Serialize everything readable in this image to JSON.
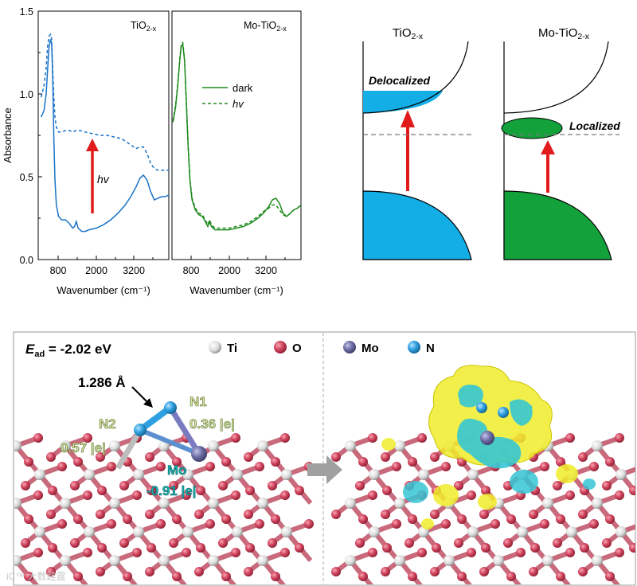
{
  "chart_data": [
    {
      "type": "line",
      "title": "TiO2-x",
      "xlabel": "Wavenumber (cm⁻¹)",
      "ylabel": "Absorbance",
      "xlim": [
        400,
        4000
      ],
      "ylim": [
        0,
        1.5
      ],
      "xticks": [
        "800",
        "2000",
        "3200"
      ],
      "yticks": [
        "0.0",
        "0.5",
        "1.0",
        "1.5"
      ],
      "annotation": "hv",
      "series": [
        {
          "style": "solid",
          "color": "#1a73c8",
          "x": [
            480,
            560,
            620,
            660,
            700,
            740,
            770,
            800,
            830,
            860,
            900,
            960,
            1050,
            1150,
            1250,
            1350,
            1400,
            1450,
            1500,
            1600,
            1700,
            1800,
            2000,
            2200,
            2400,
            2600,
            2800,
            2950,
            3100,
            3200,
            3300,
            3400,
            3500,
            3600,
            3700,
            3800,
            3900,
            4000
          ],
          "y": [
            0.86,
            0.9,
            1.0,
            1.15,
            1.29,
            1.33,
            1.3,
            1.1,
            0.74,
            0.48,
            0.33,
            0.26,
            0.24,
            0.24,
            0.22,
            0.19,
            0.2,
            0.23,
            0.19,
            0.17,
            0.17,
            0.18,
            0.19,
            0.21,
            0.24,
            0.28,
            0.33,
            0.38,
            0.44,
            0.49,
            0.51,
            0.48,
            0.41,
            0.36,
            0.37,
            0.38,
            0.38,
            0.39
          ]
        },
        {
          "style": "dashed",
          "color": "#1a73c8",
          "x": [
            480,
            560,
            620,
            660,
            700,
            740,
            770,
            800,
            830,
            860,
            900,
            960,
            1050,
            1150,
            1250,
            1350,
            1450,
            1550,
            1700,
            1900,
            2100,
            2300,
            2500,
            2700,
            2900,
            3100,
            3200,
            3300,
            3400,
            3500,
            3600,
            3700,
            3800,
            3900,
            4000
          ],
          "y": [
            0.98,
            1.05,
            1.16,
            1.29,
            1.35,
            1.36,
            1.33,
            1.15,
            0.98,
            0.86,
            0.8,
            0.77,
            0.77,
            0.78,
            0.78,
            0.77,
            0.78,
            0.78,
            0.77,
            0.76,
            0.75,
            0.75,
            0.74,
            0.73,
            0.7,
            0.67,
            0.68,
            0.68,
            0.64,
            0.58,
            0.55,
            0.54,
            0.54,
            0.54,
            0.54
          ]
        }
      ]
    },
    {
      "type": "line",
      "title": "Mo-TiO2-x",
      "xlabel": "Wavenumber (cm⁻¹)",
      "ylabel": "",
      "xlim": [
        400,
        4000
      ],
      "ylim": [
        0,
        1.5
      ],
      "xticks": [
        "800",
        "2000",
        "3200"
      ],
      "series": [
        {
          "name": "dark",
          "style": "solid",
          "color": "#1e8a1e",
          "x": [
            430,
            500,
            560,
            620,
            660,
            700,
            750,
            800,
            850,
            900,
            960,
            1050,
            1150,
            1250,
            1350,
            1400,
            1450,
            1500,
            1600,
            1800,
            2000,
            2200,
            2400,
            2600,
            2800,
            2950,
            3100,
            3200,
            3300,
            3400,
            3500,
            3600,
            3700,
            3800,
            3900,
            4000
          ],
          "y": [
            0.83,
            0.92,
            1.05,
            1.21,
            1.29,
            1.3,
            1.2,
            0.95,
            0.68,
            0.48,
            0.36,
            0.3,
            0.27,
            0.26,
            0.22,
            0.2,
            0.23,
            0.2,
            0.18,
            0.18,
            0.18,
            0.19,
            0.2,
            0.22,
            0.25,
            0.28,
            0.32,
            0.36,
            0.37,
            0.34,
            0.28,
            0.26,
            0.28,
            0.3,
            0.31,
            0.33
          ]
        },
        {
          "name": "hv",
          "style": "dashed",
          "color": "#1e8a1e",
          "x": [
            430,
            500,
            560,
            620,
            660,
            700,
            750,
            800,
            850,
            900,
            960,
            1050,
            1150,
            1250,
            1350,
            1400,
            1450,
            1500,
            1600,
            1800,
            2000,
            2200,
            2400,
            2600,
            2800,
            2950,
            3100,
            3200,
            3300,
            3400,
            3500,
            3600,
            3700,
            3800,
            3900,
            4000
          ],
          "y": [
            0.84,
            0.93,
            1.06,
            1.22,
            1.3,
            1.31,
            1.21,
            0.96,
            0.69,
            0.49,
            0.37,
            0.31,
            0.28,
            0.27,
            0.23,
            0.21,
            0.24,
            0.21,
            0.19,
            0.19,
            0.19,
            0.2,
            0.21,
            0.23,
            0.26,
            0.29,
            0.31,
            0.33,
            0.33,
            0.3,
            0.27,
            0.26,
            0.28,
            0.3,
            0.31,
            0.33
          ]
        }
      ]
    }
  ],
  "band_diagram": {
    "left_title": "TiO",
    "left_title_sub": "2-x",
    "right_title": "Mo-TiO",
    "right_title_sub": "2-x",
    "delocalized": "Delocalized",
    "localized": "Localized",
    "blue": "#13aee6",
    "green": "#13a13b",
    "arrow": "#e11b1b"
  },
  "structure_panel": {
    "eads_symbol": "E",
    "eads_sub": "ad",
    "eads_value": " = -2.02 eV",
    "legend": [
      "Ti",
      "O",
      "Mo",
      "N"
    ],
    "bond_length": "1.286 Å",
    "n1_label": "N1",
    "n1_charge": "0.36 |e|",
    "n2_label": "N2",
    "n2_charge": "0.57 |e|",
    "mo_label": "Mo",
    "mo_charge": "-0.91 |e|",
    "atom_colors": {
      "Ti": "#e8e8e8",
      "O": "#d2455e",
      "Mo": "#6e6ea6",
      "N": "#2e9fe0"
    },
    "watermark": "iC™ 大数跬霆"
  }
}
